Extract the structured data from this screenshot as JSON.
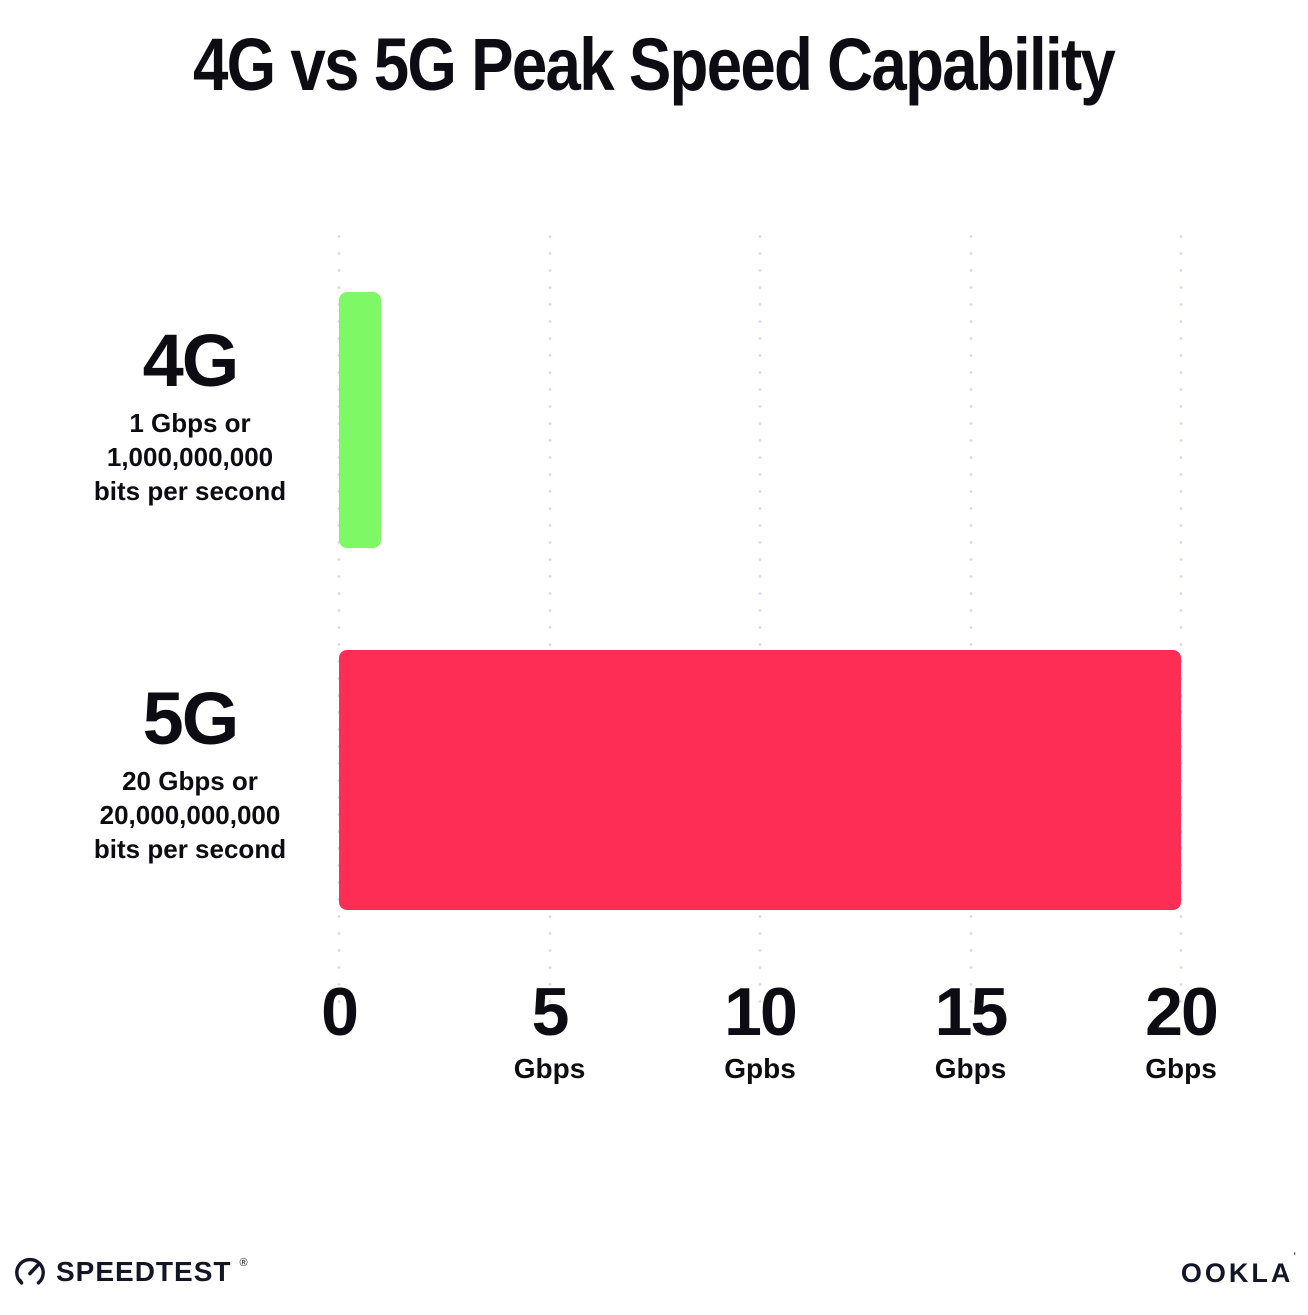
{
  "chart_data": {
    "type": "bar",
    "orientation": "horizontal",
    "title": "4G vs 5G Peak Speed Capability",
    "categories": [
      "4G",
      "5G"
    ],
    "values": [
      1,
      20
    ],
    "series": [
      {
        "name": "4G",
        "value": 1,
        "color": "#7ff866",
        "description_lines": [
          "1 Gbps or",
          "1,000,000,000",
          "bits per second"
        ]
      },
      {
        "name": "5G",
        "value": 20,
        "color": "#fd2d55",
        "description_lines": [
          "20 Gbps or",
          "20,000,000,000",
          "bits per second"
        ]
      }
    ],
    "xlim": [
      0,
      20
    ],
    "x_ticks": [
      {
        "value": 0,
        "label": "0",
        "unit": ""
      },
      {
        "value": 5,
        "label": "5",
        "unit": "Gbps"
      },
      {
        "value": 10,
        "label": "10",
        "unit": "Gpbs"
      },
      {
        "value": 15,
        "label": "15",
        "unit": "Gbps"
      },
      {
        "value": 20,
        "label": "20",
        "unit": "Gbps"
      }
    ],
    "grid": "vertical dotted gridlines, no axis lines",
    "legend": false
  },
  "footer": {
    "speedtest_label": "SPEEDTEST",
    "speedtest_mark": "®",
    "ookla_label": "OOKLA",
    "ookla_mark": "’"
  },
  "colors": {
    "background": "#ffffff",
    "text": "#0c0c12",
    "gridline": "#dcdcea",
    "bar_4g": "#7ff866",
    "bar_5g": "#fd2d55",
    "brand_dark": "#141526"
  }
}
